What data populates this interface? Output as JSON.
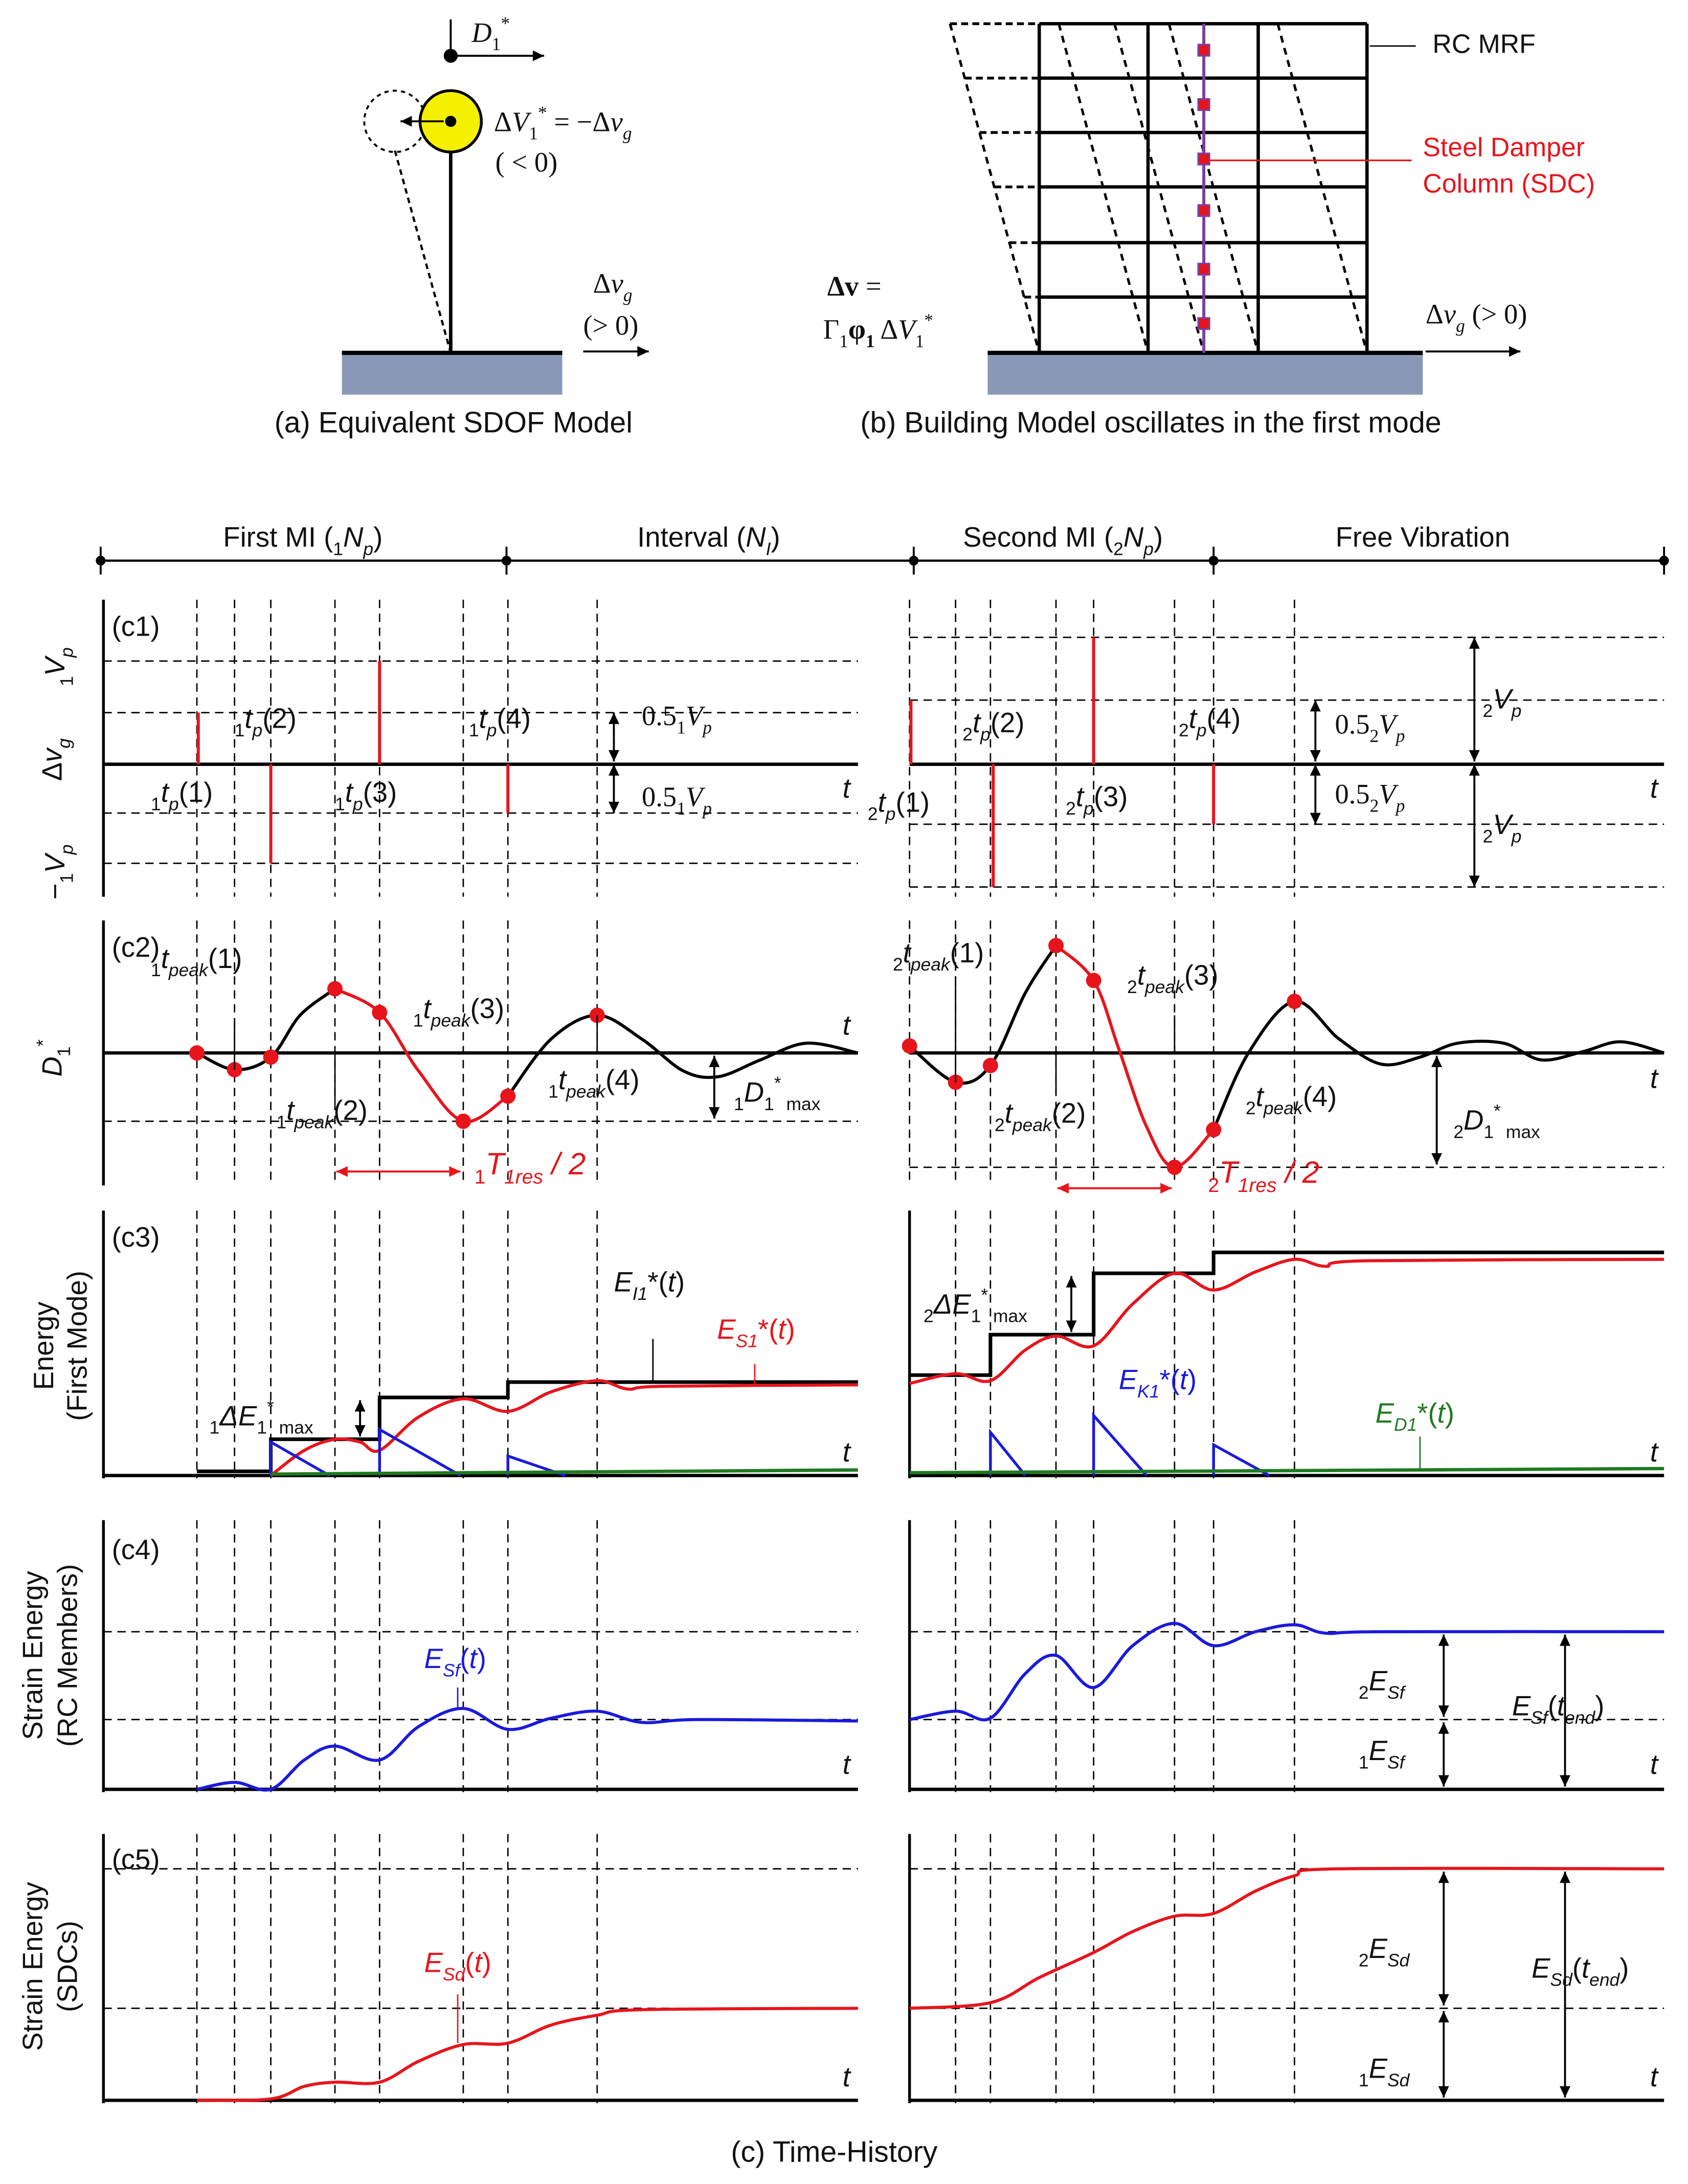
{
  "colors": {
    "red": "#e8141c",
    "blue": "#1a1adc",
    "green": "#1f7a1f",
    "sdc_purple": "#7b3fa0",
    "mass_yellow": "#f5f000",
    "ground": "#8a98b8"
  },
  "top": {
    "a": {
      "d1": [
        {
          "i": "D"
        },
        {
          "sub": "1"
        },
        {
          "sup": "*"
        }
      ],
      "dv1": [
        {
          "n": "Δ"
        },
        {
          "i": "V"
        },
        {
          "sub": "1"
        },
        {
          "sup": "*"
        },
        {
          "n": " = −Δ"
        },
        {
          "i": "v"
        },
        {
          "isub": "g"
        }
      ],
      "lt0": [
        {
          "n": "( < 0)"
        }
      ],
      "dvg": [
        {
          "n": "Δ"
        },
        {
          "i": "v"
        },
        {
          "isub": "g"
        }
      ],
      "gt0": [
        {
          "n": "(> 0)"
        }
      ],
      "caption": "(a) Equivalent SDOF Model"
    },
    "b": {
      "rc_mrf": "RC MRF",
      "sdc_line1": "Steel Damper",
      "sdc_line2": "Column (SDC)",
      "dv_eq": [
        {
          "b": "Δv"
        },
        {
          "n": " ="
        }
      ],
      "gamma": [
        {
          "n": "Γ"
        },
        {
          "sub": "1"
        },
        {
          "b": "φ"
        },
        {
          "bsub": "1"
        },
        {
          "n": " Δ"
        },
        {
          "i": "V"
        },
        {
          "sub": "1"
        },
        {
          "sup": "*"
        }
      ],
      "dvg": [
        {
          "n": "Δ"
        },
        {
          "i": "v"
        },
        {
          "isub": "g"
        },
        {
          "n": " (> 0)"
        }
      ],
      "caption": "(b) Building Model oscillates in the first mode"
    }
  },
  "timeline": {
    "first_mi": [
      {
        "n": "First MI ("
      },
      {
        "sub": "1"
      },
      {
        "i": "N"
      },
      {
        "isub": "p"
      },
      {
        "n": ")"
      }
    ],
    "interval": [
      {
        "n": "Interval ("
      },
      {
        "i": "N"
      },
      {
        "isub": "I"
      },
      {
        "n": ")"
      }
    ],
    "second_mi": [
      {
        "n": "Second MI ("
      },
      {
        "sub": "2"
      },
      {
        "i": "N"
      },
      {
        "isub": "p"
      },
      {
        "n": ")"
      }
    ],
    "free_vibration": "Free Vibration"
  },
  "c1": {
    "tag": "(c1)",
    "ylabel": [
      {
        "n": "Δ"
      },
      {
        "i": "v"
      },
      {
        "isub": "g"
      }
    ],
    "ytick_pos": [
      {
        "sub": "1"
      },
      {
        "i": "V"
      },
      {
        "isub": "p"
      }
    ],
    "ytick_neg": [
      {
        "n": "−"
      },
      {
        "sub": "1"
      },
      {
        "i": "V"
      },
      {
        "isub": "p"
      }
    ],
    "t": "t",
    "left": {
      "tp1": [
        {
          "sub": "1"
        },
        {
          "i": "t"
        },
        {
          "isub": "p"
        },
        {
          "n": "(1)"
        }
      ],
      "tp2": [
        {
          "sub": "1"
        },
        {
          "i": "t"
        },
        {
          "isub": "p"
        },
        {
          "n": "(2)"
        }
      ],
      "tp3": [
        {
          "sub": "1"
        },
        {
          "i": "t"
        },
        {
          "isub": "p"
        },
        {
          "n": "(3)"
        }
      ],
      "tp4": [
        {
          "sub": "1"
        },
        {
          "i": "t"
        },
        {
          "isub": "p"
        },
        {
          "n": "(4)"
        }
      ],
      "half_up": [
        {
          "n": "0.5"
        },
        {
          "sub": "1"
        },
        {
          "i": "V"
        },
        {
          "isub": "p"
        }
      ],
      "half_down": [
        {
          "n": "0.5"
        },
        {
          "sub": "1"
        },
        {
          "i": "V"
        },
        {
          "isub": "p"
        }
      ]
    },
    "right": {
      "tp1": [
        {
          "sub": "2"
        },
        {
          "i": "t"
        },
        {
          "isub": "p"
        },
        {
          "n": "(1)"
        }
      ],
      "tp2": [
        {
          "sub": "2"
        },
        {
          "i": "t"
        },
        {
          "isub": "p"
        },
        {
          "n": "(2)"
        }
      ],
      "tp3": [
        {
          "sub": "2"
        },
        {
          "i": "t"
        },
        {
          "isub": "p"
        },
        {
          "n": "(3)"
        }
      ],
      "tp4": [
        {
          "sub": "2"
        },
        {
          "i": "t"
        },
        {
          "isub": "p"
        },
        {
          "n": "(4)"
        }
      ],
      "half_up": [
        {
          "n": "0.5"
        },
        {
          "sub": "2"
        },
        {
          "i": "V"
        },
        {
          "isub": "p"
        }
      ],
      "half_down": [
        {
          "n": "0.5"
        },
        {
          "sub": "2"
        },
        {
          "i": "V"
        },
        {
          "isub": "p"
        }
      ],
      "vp_up": [
        {
          "sub": "2"
        },
        {
          "i": "V"
        },
        {
          "isub": "p"
        }
      ],
      "vp_down": [
        {
          "sub": "2"
        },
        {
          "i": "V"
        },
        {
          "isub": "p"
        }
      ]
    }
  },
  "c2": {
    "tag": "(c2)",
    "ylabel": [
      {
        "i": "D"
      },
      {
        "sub": "1"
      },
      {
        "sup": "*"
      }
    ],
    "t": "t",
    "left": {
      "tpeak1": [
        {
          "sub": "1"
        },
        {
          "i": "t"
        },
        {
          "isub": "peak"
        },
        {
          "n": "(1)"
        }
      ],
      "tpeak2": [
        {
          "sub": "1"
        },
        {
          "i": "t"
        },
        {
          "isub": "peak"
        },
        {
          "n": "(2)"
        }
      ],
      "tpeak3": [
        {
          "sub": "1"
        },
        {
          "i": "t"
        },
        {
          "isub": "peak"
        },
        {
          "n": "(3)"
        }
      ],
      "tpeak4": [
        {
          "sub": "1"
        },
        {
          "i": "t"
        },
        {
          "isub": "peak"
        },
        {
          "n": "(4)"
        }
      ],
      "dmax": [
        {
          "sub": "1"
        },
        {
          "i": "D"
        },
        {
          "sub": "1"
        },
        {
          "sup": "*"
        },
        {
          "sub": " max"
        }
      ],
      "tres": [
        {
          "sub": "1"
        },
        {
          "i": "T"
        },
        {
          "isub": "1res"
        },
        {
          "i": " / 2"
        }
      ]
    },
    "right": {
      "tpeak1": [
        {
          "sub": "2"
        },
        {
          "i": "t"
        },
        {
          "isub": "peak"
        },
        {
          "n": "(1)"
        }
      ],
      "tpeak2": [
        {
          "sub": "2"
        },
        {
          "i": "t"
        },
        {
          "isub": "peak"
        },
        {
          "n": "(2)"
        }
      ],
      "tpeak3": [
        {
          "sub": "2"
        },
        {
          "i": "t"
        },
        {
          "isub": "peak"
        },
        {
          "n": "(3)"
        }
      ],
      "tpeak4": [
        {
          "sub": "2"
        },
        {
          "i": "t"
        },
        {
          "isub": "peak"
        },
        {
          "n": "(4)"
        }
      ],
      "dmax": [
        {
          "sub": "2"
        },
        {
          "i": "D"
        },
        {
          "sub": "1"
        },
        {
          "sup": "*"
        },
        {
          "sub": " max"
        }
      ],
      "tres": [
        {
          "sub": "2"
        },
        {
          "i": "T"
        },
        {
          "isub": "1res"
        },
        {
          "i": " / 2"
        }
      ]
    }
  },
  "c3": {
    "tag": "(c3)",
    "ylabel_line1": "Energy",
    "ylabel_line2": "(First Mode)",
    "t": "t",
    "ei": [
      {
        "i": "E"
      },
      {
        "isub": "I1"
      },
      {
        "n": "*("
      },
      {
        "i": "t"
      },
      {
        "n": ")"
      }
    ],
    "es": [
      {
        "i": "E"
      },
      {
        "isub": "S1"
      },
      {
        "n": "*("
      },
      {
        "i": "t"
      },
      {
        "n": ")"
      }
    ],
    "ek": [
      {
        "i": "E"
      },
      {
        "isub": "K1"
      },
      {
        "n": "*("
      },
      {
        "i": "t"
      },
      {
        "n": ")"
      }
    ],
    "ed": [
      {
        "i": "E"
      },
      {
        "isub": "D1"
      },
      {
        "n": "*("
      },
      {
        "i": "t"
      },
      {
        "n": ")"
      }
    ],
    "de1": [
      {
        "sub": "1"
      },
      {
        "i": "ΔE"
      },
      {
        "sub": "1"
      },
      {
        "sup": "*"
      },
      {
        "sub": " max"
      }
    ],
    "de2": [
      {
        "sub": "2"
      },
      {
        "i": "ΔE"
      },
      {
        "sub": "1"
      },
      {
        "sup": "*"
      },
      {
        "sub": " max"
      }
    ]
  },
  "c4": {
    "tag": "(c4)",
    "ylabel_line1": "Strain Energy",
    "ylabel_line2": "(RC Members)",
    "t": "t",
    "esf": [
      {
        "i": "E"
      },
      {
        "isub": "Sf"
      },
      {
        "n": "("
      },
      {
        "i": "t"
      },
      {
        "n": ")"
      }
    ],
    "esf2": [
      {
        "sub": "2"
      },
      {
        "i": "E"
      },
      {
        "isub": "Sf"
      }
    ],
    "esf1": [
      {
        "sub": "1"
      },
      {
        "i": "E"
      },
      {
        "isub": "Sf"
      }
    ],
    "esf_end": [
      {
        "i": "E"
      },
      {
        "isub": "Sf"
      },
      {
        "n": "("
      },
      {
        "i": "t"
      },
      {
        "isub": "end"
      },
      {
        "n": ")"
      }
    ]
  },
  "c5": {
    "tag": "(c5)",
    "ylabel_line1": "Strain Energy",
    "ylabel_line2": "(SDCs)",
    "t": "t",
    "esd": [
      {
        "i": "E"
      },
      {
        "isub": "Sd"
      },
      {
        "n": "("
      },
      {
        "i": "t"
      },
      {
        "n": ")"
      }
    ],
    "esd2": [
      {
        "sub": "2"
      },
      {
        "i": "E"
      },
      {
        "isub": "Sd"
      }
    ],
    "esd1": [
      {
        "sub": "1"
      },
      {
        "i": "E"
      },
      {
        "isub": "Sd"
      }
    ],
    "esd_end": [
      {
        "i": "E"
      },
      {
        "isub": "Sd"
      },
      {
        "n": "("
      },
      {
        "i": "t"
      },
      {
        "isub": "end"
      },
      {
        "n": ")"
      }
    ]
  },
  "caption": "(c) Time-History"
}
